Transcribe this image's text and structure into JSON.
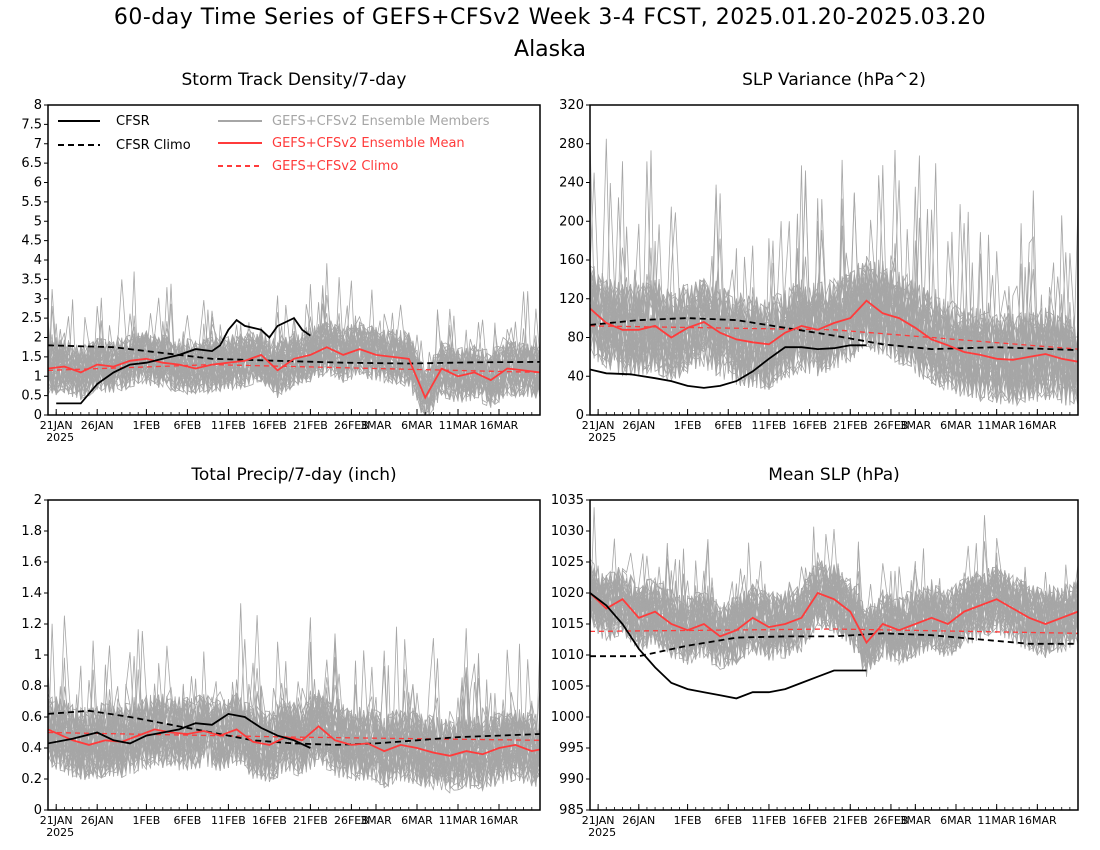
{
  "title": "60-day Time Series of GEFS+CFSv2 Week 3-4 FCST, 2025.01.20-2025.03.20",
  "subtitle": "Alaska",
  "colors": {
    "cfsr": "#000000",
    "members": "#a6a6a6",
    "ens_mean": "#ff3b3b",
    "ens_clim": "#ff3b3b"
  },
  "legend": {
    "cfsr": "CFSR",
    "cfsr_climo": "CFSR Climo",
    "members": "GEFS+CFSv2 Ensemble Members",
    "ens_mean": "GEFS+CFSv2 Ensemble Mean",
    "ens_climo": "GEFS+CFSv2 Climo"
  },
  "chart_data": [
    {
      "type": "line",
      "title": "Storm Track Density/7-day",
      "ylim": [
        0,
        8
      ],
      "yticks": [
        "0",
        "0.5",
        "1",
        "1.5",
        "2",
        "2.5",
        "3",
        "3.5",
        "4",
        "4.5",
        "5",
        "5.5",
        "6",
        "6.5",
        "7",
        "7.5",
        "8"
      ],
      "yvals": [
        0,
        0.5,
        1,
        1.5,
        2,
        2.5,
        3,
        3.5,
        4,
        4.5,
        5,
        5.5,
        6,
        6.5,
        7,
        7.5,
        8
      ],
      "xticks": [
        {
          "day": 1,
          "label": "21JAN",
          "sub": "2025"
        },
        {
          "day": 6,
          "label": "26JAN"
        },
        {
          "day": 12,
          "label": "1FEB"
        },
        {
          "day": 17,
          "label": "6FEB"
        },
        {
          "day": 22,
          "label": "11FEB"
        },
        {
          "day": 27,
          "label": "16FEB"
        },
        {
          "day": 32,
          "label": "21FEB"
        },
        {
          "day": 37,
          "label": "26FEB"
        },
        {
          "day": 40,
          "label": "3MAR"
        },
        {
          "day": 45,
          "label": "6MAR"
        },
        {
          "day": 50,
          "label": "11MAR"
        },
        {
          "day": 55,
          "label": "16MAR"
        }
      ],
      "cfsr": [
        [
          1,
          0.3
        ],
        [
          4,
          0.3
        ],
        [
          6,
          0.8
        ],
        [
          8,
          1.1
        ],
        [
          10,
          1.3
        ],
        [
          12,
          1.35
        ],
        [
          14,
          1.45
        ],
        [
          16,
          1.55
        ],
        [
          18,
          1.7
        ],
        [
          20,
          1.65
        ],
        [
          21,
          1.8
        ],
        [
          22,
          2.2
        ],
        [
          23,
          2.45
        ],
        [
          24,
          2.3
        ],
        [
          26,
          2.2
        ],
        [
          27,
          2.0
        ],
        [
          28,
          2.3
        ],
        [
          30,
          2.5
        ],
        [
          31,
          2.2
        ],
        [
          32,
          2.05
        ]
      ],
      "cfsr_clim": [
        [
          0,
          1.8
        ],
        [
          8,
          1.75
        ],
        [
          14,
          1.6
        ],
        [
          20,
          1.45
        ],
        [
          28,
          1.4
        ],
        [
          36,
          1.35
        ],
        [
          44,
          1.33
        ],
        [
          52,
          1.36
        ],
        [
          60,
          1.37
        ]
      ],
      "ens_mean": [
        [
          0,
          1.2
        ],
        [
          2,
          1.25
        ],
        [
          4,
          1.1
        ],
        [
          6,
          1.3
        ],
        [
          8,
          1.25
        ],
        [
          10,
          1.4
        ],
        [
          12,
          1.45
        ],
        [
          14,
          1.35
        ],
        [
          16,
          1.3
        ],
        [
          18,
          1.2
        ],
        [
          20,
          1.3
        ],
        [
          22,
          1.35
        ],
        [
          24,
          1.4
        ],
        [
          26,
          1.55
        ],
        [
          28,
          1.15
        ],
        [
          30,
          1.45
        ],
        [
          32,
          1.55
        ],
        [
          34,
          1.75
        ],
        [
          36,
          1.55
        ],
        [
          38,
          1.7
        ],
        [
          40,
          1.55
        ],
        [
          42,
          1.5
        ],
        [
          44,
          1.45
        ],
        [
          46,
          0.45
        ],
        [
          48,
          1.2
        ],
        [
          50,
          1.0
        ],
        [
          52,
          1.1
        ],
        [
          54,
          0.9
        ],
        [
          56,
          1.2
        ],
        [
          58,
          1.15
        ],
        [
          60,
          1.1
        ]
      ],
      "ens_clim": [
        [
          0,
          1.15
        ],
        [
          20,
          1.3
        ],
        [
          40,
          1.2
        ],
        [
          60,
          1.1
        ]
      ],
      "members": {
        "seed": 11,
        "base": 1.2,
        "spread": 0.9,
        "spike": 1.6,
        "floor": 0,
        "ceil": 4.6
      }
    },
    {
      "type": "line",
      "title": "SLP Variance (hPa^2)",
      "ylim": [
        0,
        320
      ],
      "yticks": [
        "0",
        "40",
        "80",
        "120",
        "160",
        "200",
        "240",
        "280",
        "320"
      ],
      "yvals": [
        0,
        40,
        80,
        120,
        160,
        200,
        240,
        280,
        320
      ],
      "xticks": [
        {
          "day": 1,
          "label": "21JAN",
          "sub": "2025"
        },
        {
          "day": 6,
          "label": "26JAN"
        },
        {
          "day": 12,
          "label": "1FEB"
        },
        {
          "day": 17,
          "label": "6FEB"
        },
        {
          "day": 22,
          "label": "11FEB"
        },
        {
          "day": 27,
          "label": "16FEB"
        },
        {
          "day": 32,
          "label": "21FEB"
        },
        {
          "day": 37,
          "label": "26FEB"
        },
        {
          "day": 40,
          "label": "3MAR"
        },
        {
          "day": 45,
          "label": "6MAR"
        },
        {
          "day": 50,
          "label": "11MAR"
        },
        {
          "day": 55,
          "label": "16MAR"
        }
      ],
      "cfsr": [
        [
          0,
          47
        ],
        [
          2,
          43
        ],
        [
          5,
          42
        ],
        [
          8,
          38
        ],
        [
          10,
          35
        ],
        [
          12,
          30
        ],
        [
          14,
          28
        ],
        [
          16,
          30
        ],
        [
          18,
          35
        ],
        [
          20,
          45
        ],
        [
          22,
          58
        ],
        [
          24,
          70
        ],
        [
          26,
          70
        ],
        [
          28,
          68
        ],
        [
          30,
          69
        ],
        [
          32,
          72
        ],
        [
          34,
          72
        ]
      ],
      "cfsr_clim": [
        [
          0,
          93
        ],
        [
          6,
          98
        ],
        [
          12,
          100
        ],
        [
          18,
          98
        ],
        [
          24,
          90
        ],
        [
          30,
          82
        ],
        [
          36,
          73
        ],
        [
          42,
          68
        ],
        [
          50,
          70
        ],
        [
          60,
          67
        ]
      ],
      "ens_mean": [
        [
          0,
          110
        ],
        [
          2,
          95
        ],
        [
          4,
          88
        ],
        [
          6,
          88
        ],
        [
          8,
          92
        ],
        [
          10,
          80
        ],
        [
          12,
          90
        ],
        [
          14,
          96
        ],
        [
          16,
          85
        ],
        [
          18,
          78
        ],
        [
          20,
          75
        ],
        [
          22,
          73
        ],
        [
          24,
          85
        ],
        [
          26,
          92
        ],
        [
          28,
          88
        ],
        [
          30,
          95
        ],
        [
          32,
          100
        ],
        [
          34,
          118
        ],
        [
          36,
          105
        ],
        [
          38,
          100
        ],
        [
          40,
          90
        ],
        [
          42,
          78
        ],
        [
          44,
          72
        ],
        [
          46,
          65
        ],
        [
          48,
          62
        ],
        [
          50,
          58
        ],
        [
          52,
          57
        ],
        [
          54,
          60
        ],
        [
          56,
          63
        ],
        [
          58,
          58
        ],
        [
          60,
          55
        ]
      ],
      "ens_clim": [
        [
          0,
          92
        ],
        [
          30,
          88
        ],
        [
          60,
          68
        ]
      ],
      "members": {
        "seed": 23,
        "base": 95,
        "spread": 60,
        "spike": 150,
        "floor": 10,
        "ceil": 300
      }
    },
    {
      "type": "line",
      "title": "Total Precip/7-day (inch)",
      "ylim": [
        0,
        2
      ],
      "yticks": [
        "0",
        "0.2",
        "0.4",
        "0.6",
        "0.8",
        "1",
        "1.2",
        "1.4",
        "1.6",
        "1.8",
        "2"
      ],
      "yvals": [
        0,
        0.2,
        0.4,
        0.6,
        0.8,
        1,
        1.2,
        1.4,
        1.6,
        1.8,
        2
      ],
      "xticks": [
        {
          "day": 1,
          "label": "21JAN",
          "sub": "2025"
        },
        {
          "day": 6,
          "label": "26JAN"
        },
        {
          "day": 12,
          "label": "1FEB"
        },
        {
          "day": 17,
          "label": "6FEB"
        },
        {
          "day": 22,
          "label": "11FEB"
        },
        {
          "day": 27,
          "label": "16FEB"
        },
        {
          "day": 32,
          "label": "21FEB"
        },
        {
          "day": 37,
          "label": "26FEB"
        },
        {
          "day": 40,
          "label": "3MAR"
        },
        {
          "day": 45,
          "label": "6MAR"
        },
        {
          "day": 50,
          "label": "11MAR"
        },
        {
          "day": 55,
          "label": "16MAR"
        }
      ],
      "cfsr": [
        [
          0,
          0.43
        ],
        [
          3,
          0.46
        ],
        [
          6,
          0.5
        ],
        [
          8,
          0.45
        ],
        [
          10,
          0.43
        ],
        [
          12,
          0.48
        ],
        [
          14,
          0.5
        ],
        [
          16,
          0.52
        ],
        [
          18,
          0.56
        ],
        [
          20,
          0.55
        ],
        [
          22,
          0.62
        ],
        [
          24,
          0.6
        ],
        [
          26,
          0.53
        ],
        [
          28,
          0.48
        ],
        [
          30,
          0.45
        ],
        [
          32,
          0.4
        ]
      ],
      "cfsr_clim": [
        [
          0,
          0.62
        ],
        [
          5,
          0.64
        ],
        [
          10,
          0.6
        ],
        [
          15,
          0.55
        ],
        [
          20,
          0.5
        ],
        [
          25,
          0.45
        ],
        [
          30,
          0.43
        ],
        [
          35,
          0.42
        ],
        [
          40,
          0.43
        ],
        [
          45,
          0.45
        ],
        [
          50,
          0.47
        ],
        [
          55,
          0.48
        ],
        [
          60,
          0.49
        ]
      ],
      "ens_mean": [
        [
          0,
          0.52
        ],
        [
          3,
          0.45
        ],
        [
          5,
          0.42
        ],
        [
          7,
          0.45
        ],
        [
          9,
          0.44
        ],
        [
          11,
          0.48
        ],
        [
          13,
          0.52
        ],
        [
          15,
          0.5
        ],
        [
          17,
          0.49
        ],
        [
          19,
          0.51
        ],
        [
          21,
          0.48
        ],
        [
          23,
          0.52
        ],
        [
          25,
          0.44
        ],
        [
          27,
          0.42
        ],
        [
          29,
          0.47
        ],
        [
          31,
          0.45
        ],
        [
          33,
          0.54
        ],
        [
          35,
          0.45
        ],
        [
          37,
          0.42
        ],
        [
          39,
          0.43
        ],
        [
          41,
          0.38
        ],
        [
          43,
          0.42
        ],
        [
          45,
          0.4
        ],
        [
          47,
          0.37
        ],
        [
          49,
          0.35
        ],
        [
          51,
          0.38
        ],
        [
          53,
          0.36
        ],
        [
          55,
          0.4
        ],
        [
          57,
          0.42
        ],
        [
          59,
          0.38
        ],
        [
          60,
          0.39
        ]
      ],
      "ens_clim": [
        [
          0,
          0.5
        ],
        [
          30,
          0.47
        ],
        [
          60,
          0.45
        ]
      ],
      "members": {
        "seed": 37,
        "base": 0.45,
        "spread": 0.3,
        "spike": 0.6,
        "floor": 0.03,
        "ceil": 1.45
      }
    },
    {
      "type": "line",
      "title": "Mean SLP (hPa)",
      "ylim": [
        985,
        1035
      ],
      "yticks": [
        "985",
        "990",
        "995",
        "1000",
        "1005",
        "1010",
        "1015",
        "1020",
        "1025",
        "1030",
        "1035"
      ],
      "yvals": [
        985,
        990,
        995,
        1000,
        1005,
        1010,
        1015,
        1020,
        1025,
        1030,
        1035
      ],
      "xticks": [
        {
          "day": 1,
          "label": "21JAN",
          "sub": "2025"
        },
        {
          "day": 6,
          "label": "26JAN"
        },
        {
          "day": 12,
          "label": "1FEB"
        },
        {
          "day": 17,
          "label": "6FEB"
        },
        {
          "day": 22,
          "label": "11FEB"
        },
        {
          "day": 27,
          "label": "16FEB"
        },
        {
          "day": 32,
          "label": "21FEB"
        },
        {
          "day": 37,
          "label": "26FEB"
        },
        {
          "day": 40,
          "label": "3MAR"
        },
        {
          "day": 45,
          "label": "6MAR"
        },
        {
          "day": 50,
          "label": "11MAR"
        },
        {
          "day": 55,
          "label": "16MAR"
        }
      ],
      "cfsr": [
        [
          0,
          1020
        ],
        [
          2,
          1018
        ],
        [
          4,
          1015
        ],
        [
          6,
          1011
        ],
        [
          8,
          1008
        ],
        [
          10,
          1005.5
        ],
        [
          12,
          1004.5
        ],
        [
          14,
          1004
        ],
        [
          16,
          1003.5
        ],
        [
          18,
          1003
        ],
        [
          20,
          1004
        ],
        [
          22,
          1004
        ],
        [
          24,
          1004.5
        ],
        [
          26,
          1005.5
        ],
        [
          28,
          1006.5
        ],
        [
          30,
          1007.5
        ],
        [
          32,
          1007.5
        ],
        [
          34,
          1007.5
        ]
      ],
      "cfsr_clim": [
        [
          0,
          1009.8
        ],
        [
          6,
          1009.8
        ],
        [
          12,
          1011.5
        ],
        [
          18,
          1012.8
        ],
        [
          24,
          1013
        ],
        [
          30,
          1013
        ],
        [
          36,
          1013.5
        ],
        [
          42,
          1013.2
        ],
        [
          48,
          1012.5
        ],
        [
          54,
          1011.8
        ],
        [
          60,
          1011.8
        ]
      ],
      "ens_mean": [
        [
          0,
          1020
        ],
        [
          2,
          1017.5
        ],
        [
          4,
          1019
        ],
        [
          6,
          1016
        ],
        [
          8,
          1017
        ],
        [
          10,
          1015
        ],
        [
          12,
          1014
        ],
        [
          14,
          1015
        ],
        [
          16,
          1013
        ],
        [
          18,
          1014
        ],
        [
          20,
          1016
        ],
        [
          22,
          1014.5
        ],
        [
          24,
          1015
        ],
        [
          26,
          1016
        ],
        [
          28,
          1020
        ],
        [
          30,
          1019
        ],
        [
          32,
          1017
        ],
        [
          34,
          1012
        ],
        [
          36,
          1015
        ],
        [
          38,
          1014
        ],
        [
          40,
          1015
        ],
        [
          42,
          1016
        ],
        [
          44,
          1015
        ],
        [
          46,
          1017
        ],
        [
          48,
          1018
        ],
        [
          50,
          1019
        ],
        [
          52,
          1017.5
        ],
        [
          54,
          1016
        ],
        [
          56,
          1015
        ],
        [
          58,
          1016
        ],
        [
          60,
          1017
        ]
      ],
      "ens_clim": [
        [
          0,
          1013.8
        ],
        [
          30,
          1014.2
        ],
        [
          60,
          1013.5
        ]
      ],
      "members": {
        "seed": 53,
        "base": 1014.5,
        "spread": 7,
        "spike": 10,
        "floor": 997,
        "ceil": 1034
      }
    }
  ]
}
